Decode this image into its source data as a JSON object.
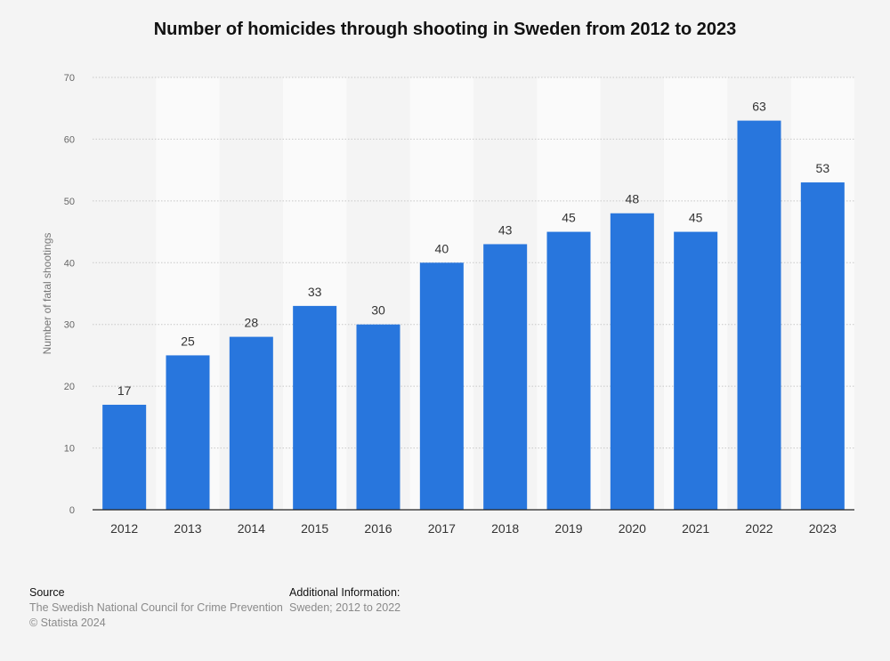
{
  "chart_data": {
    "type": "bar",
    "title": "Number of homicides through shooting in Sweden from 2012 to 2023",
    "xlabel": "",
    "ylabel": "Number of fatal shootings",
    "categories": [
      "2012",
      "2013",
      "2014",
      "2015",
      "2016",
      "2017",
      "2018",
      "2019",
      "2020",
      "2021",
      "2022",
      "2023"
    ],
    "values": [
      17,
      25,
      28,
      33,
      30,
      40,
      43,
      45,
      48,
      45,
      63,
      53
    ],
    "ylim": [
      0,
      70
    ],
    "yticks": [
      0,
      10,
      20,
      30,
      40,
      50,
      60,
      70
    ],
    "grid": true,
    "bar_color": "#2876dd",
    "data_labels": true
  },
  "footer": {
    "source_heading": "Source",
    "source_text": "The Swedish National Council for Crime Prevention",
    "copyright": "© Statista 2024",
    "additional_heading": "Additional Information:",
    "additional_text": "Sweden; 2012 to 2022"
  }
}
